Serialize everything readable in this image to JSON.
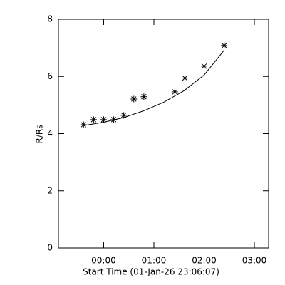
{
  "chart_data": {
    "type": "scatter",
    "xlabel": "Start Time (01-Jan-26 23:06:07)",
    "ylabel": "R/Rs",
    "x": [
      -24,
      -12,
      0,
      12,
      24,
      36,
      48,
      85,
      97,
      120,
      144
    ],
    "values": [
      4.31,
      4.49,
      4.49,
      4.49,
      4.64,
      5.21,
      5.29,
      5.46,
      5.94,
      6.36,
      7.08
    ],
    "fit": {
      "x": [
        -24,
        0,
        24,
        48,
        72,
        96,
        120,
        144
      ],
      "values": [
        4.28,
        4.4,
        4.56,
        4.8,
        5.1,
        5.5,
        6.05,
        6.92
      ]
    },
    "color": "#000000",
    "xlim": [
      -54,
      197
    ],
    "ylim": [
      0,
      8
    ],
    "xticks": [
      {
        "value": 0,
        "label": "00:00"
      },
      {
        "value": 60,
        "label": "01:00"
      },
      {
        "value": 120,
        "label": "02:00"
      },
      {
        "value": 180,
        "label": "03:00"
      }
    ],
    "yticks": [
      0,
      2,
      4,
      6,
      8
    ]
  }
}
